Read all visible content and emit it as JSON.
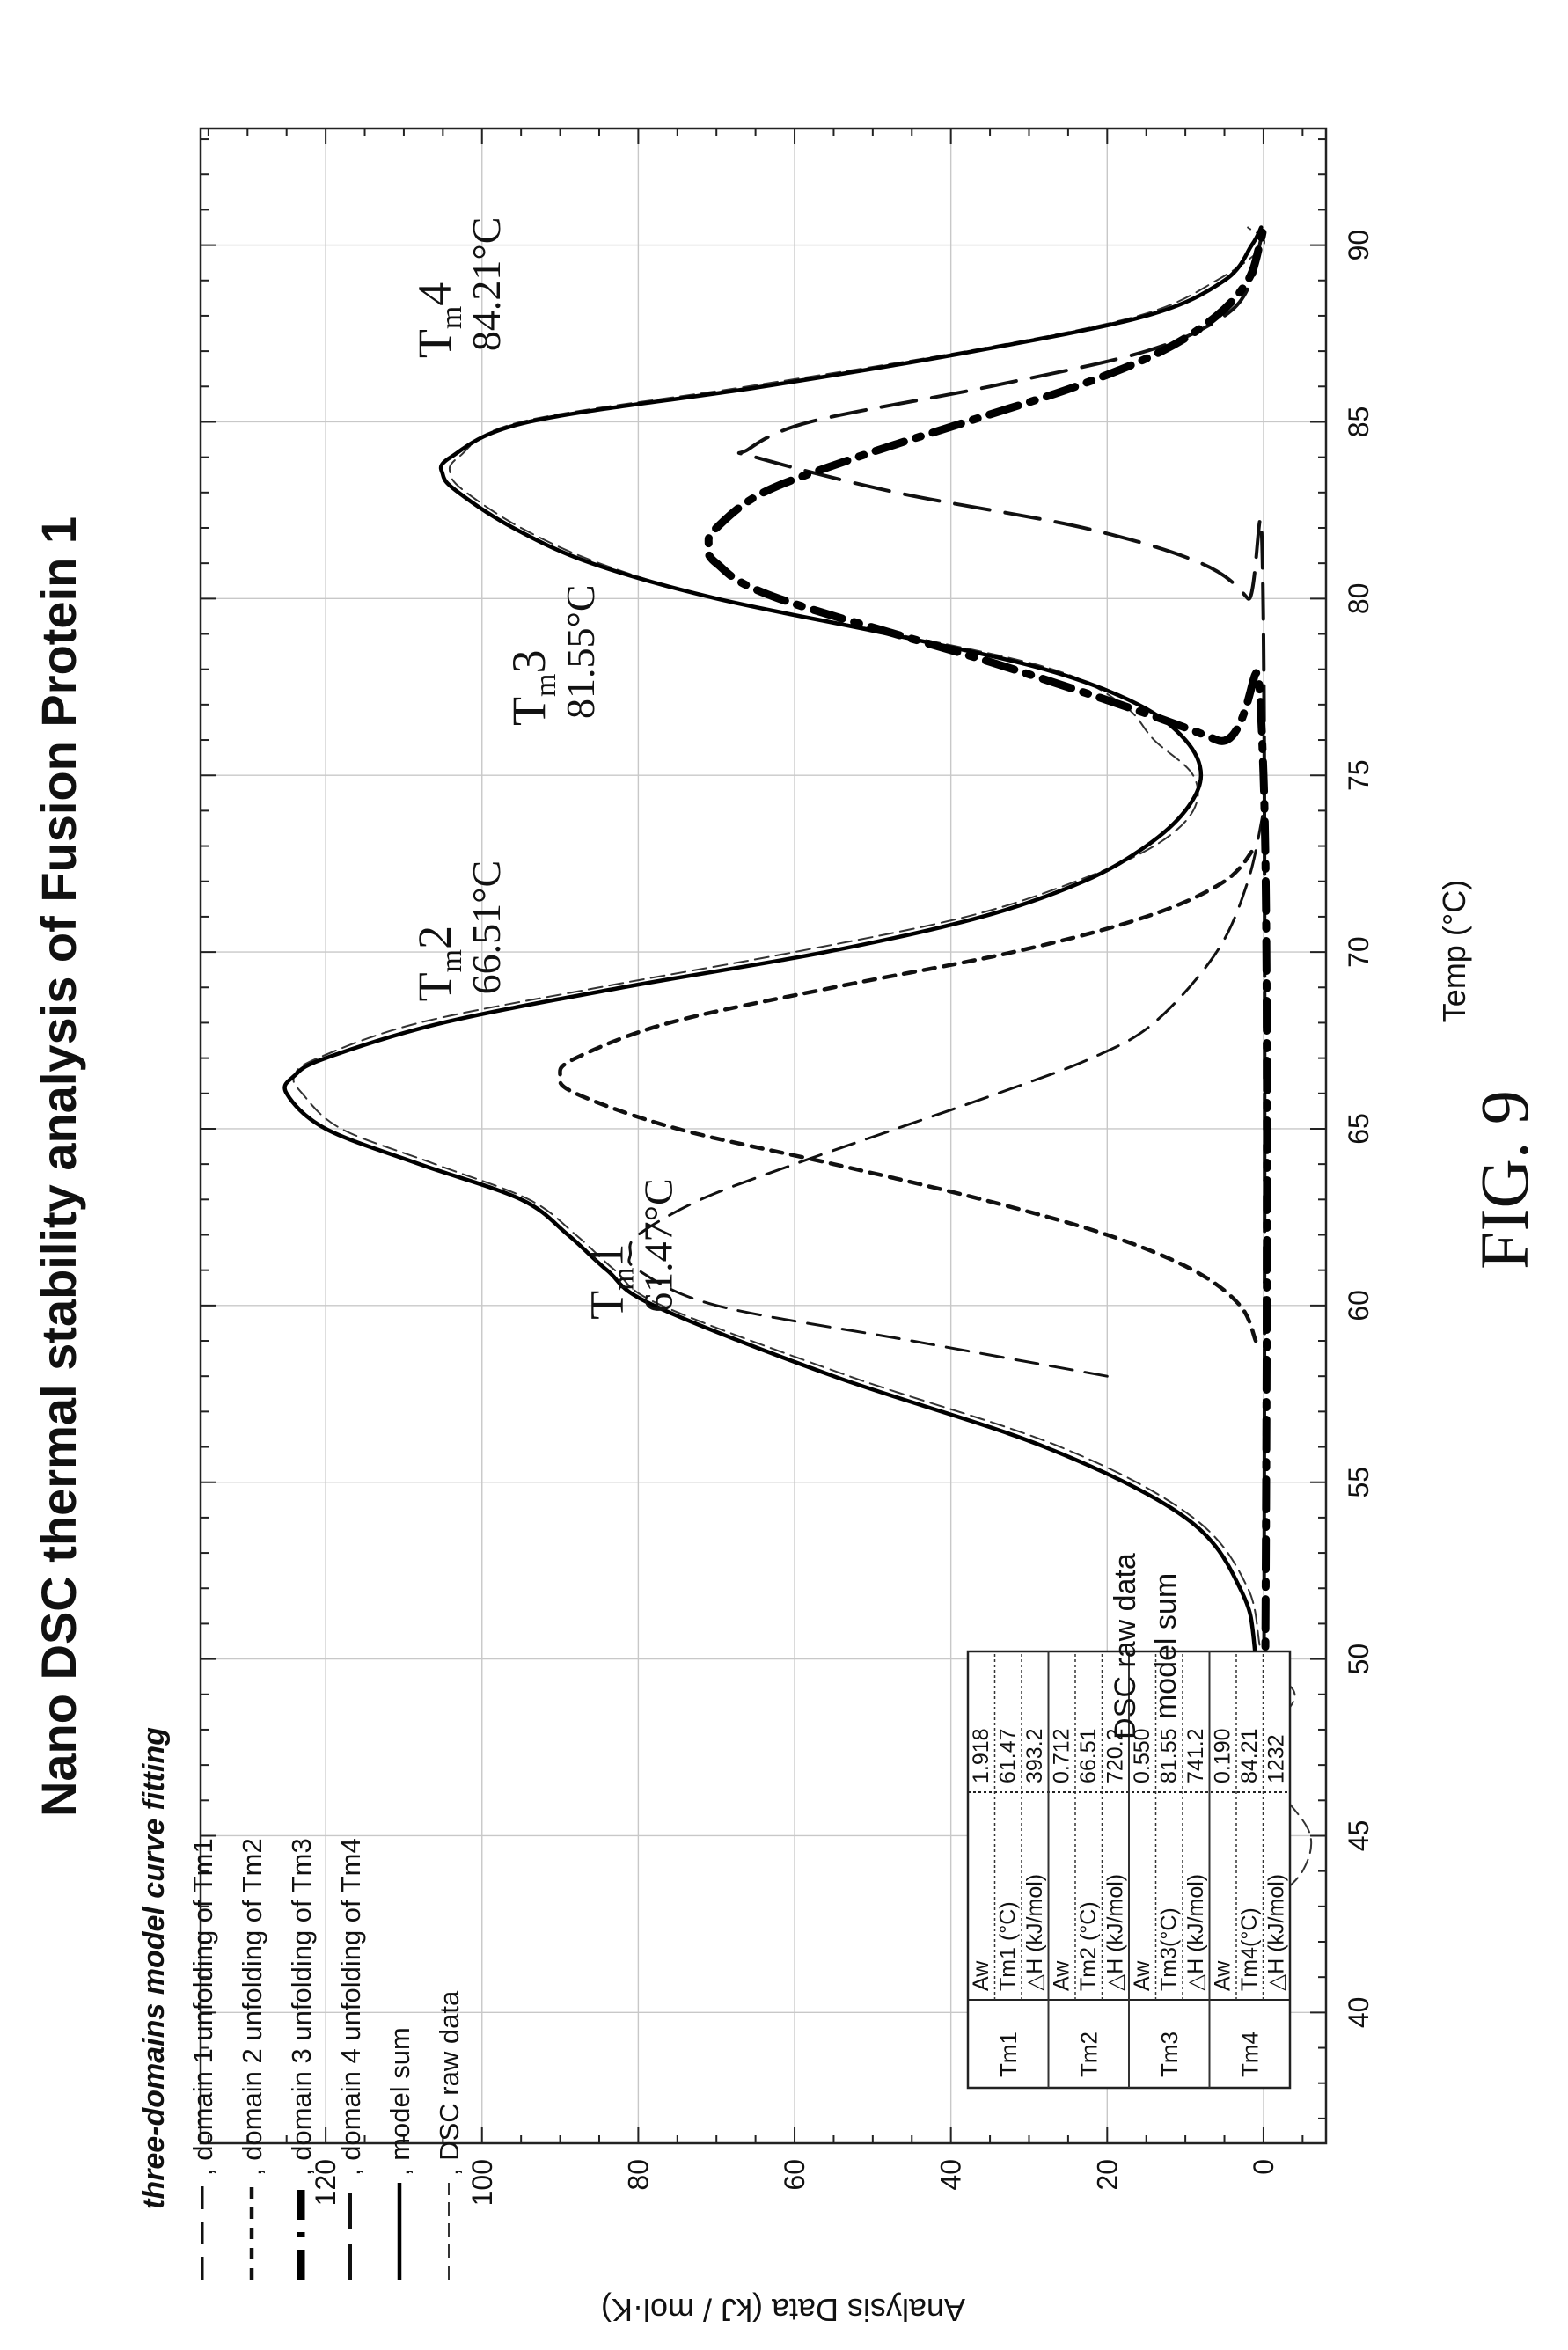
{
  "figure_label": "FIG. 9",
  "chart_data": {
    "type": "line",
    "title": "Nano DSC thermal stability analysis of Fusion Protein 1",
    "xlabel": "Temp (°C)",
    "ylabel": "Analysis Data (kJ / mol·K)",
    "xlim": [
      36.3,
      93.3
    ],
    "ylim": [
      -8,
      136
    ],
    "x_ticks": [
      40,
      45,
      50,
      55,
      60,
      65,
      70,
      75,
      80,
      85,
      90
    ],
    "y_ticks": [
      0,
      20,
      40,
      60,
      80,
      100,
      120
    ],
    "grid": true,
    "legend": {
      "placement": "top-left",
      "title": "three-domains model curve fitting",
      "entries": [
        {
          "label": ", domain 1 unfolding of Tm1",
          "series": "domain1"
        },
        {
          "label": ", domain 2 unfolding of Tm2",
          "series": "domain2"
        },
        {
          "label": ", domain 3 unfolding of Tm3",
          "series": "domain3"
        },
        {
          "label": ", domain 4 unfolding of Tm4",
          "series": "domain4"
        },
        {
          "label": ", model sum",
          "series": "model_sum"
        },
        {
          "label": ", DSC raw data",
          "series": "raw"
        }
      ]
    },
    "inline_labels": [
      "DSC raw data",
      "model sum"
    ],
    "annotations": [
      {
        "tm": "T",
        "sub": "m",
        "num": "1",
        "value": "61.47°C",
        "x": 59.6,
        "y": 82
      },
      {
        "tm": "T",
        "sub": "m",
        "num": "2",
        "value": "66.51°C",
        "x": 68.6,
        "y": 104
      },
      {
        "tm": "T",
        "sub": "m",
        "num": "3",
        "value": "81.55°C",
        "x": 76.4,
        "y": 92
      },
      {
        "tm": "T",
        "sub": "m",
        "num": "4",
        "value": "84.21°C",
        "x": 86.8,
        "y": 104
      }
    ],
    "params": {
      "headers": [
        "Tm1",
        "Tm2",
        "Tm3",
        "Tm4"
      ],
      "rows": [
        {
          "group": "Tm1",
          "label": "Aw",
          "value": "1.918"
        },
        {
          "group": "",
          "label": "Tm1 (°C)",
          "value": "61.47"
        },
        {
          "group": "",
          "label": "△H (kJ/mol)",
          "value": "393.2"
        },
        {
          "group": "Tm2",
          "label": "Aw",
          "value": "0.712"
        },
        {
          "group": "",
          "label": "Tm2 (°C)",
          "value": "66.51"
        },
        {
          "group": "",
          "label": "△H (kJ/mol)",
          "value": "720.2"
        },
        {
          "group": "Tm3",
          "label": "Aw",
          "value": "0.550"
        },
        {
          "group": "",
          "label": "Tm3(°C)",
          "value": "81.55"
        },
        {
          "group": "",
          "label": "△H (kJ/mol)",
          "value": "741.2"
        },
        {
          "group": "Tm4",
          "label": "Aw",
          "value": "0.190"
        },
        {
          "group": "",
          "label": "Tm4(°C)",
          "value": "84.21"
        },
        {
          "group": "",
          "label": "△H (kJ/mol)",
          "value": "1232"
        }
      ]
    },
    "series": [
      {
        "id": "domain1",
        "style": "long-dash",
        "x": [
          58,
          59,
          60,
          61,
          61.47,
          62,
          63,
          64,
          65,
          66,
          67,
          68,
          70,
          72,
          74
        ],
        "y": [
          20,
          45,
          70,
          80,
          81,
          80,
          72,
          60,
          47,
          34,
          22,
          14,
          6,
          2,
          0
        ]
      },
      {
        "id": "domain2",
        "style": "short-dash",
        "x": [
          59,
          60,
          61,
          62,
          63,
          64,
          65,
          66,
          66.51,
          67,
          68,
          69,
          70,
          71,
          72,
          73
        ],
        "y": [
          1,
          3,
          9,
          20,
          36,
          55,
          75,
          88,
          90,
          88,
          76,
          55,
          32,
          15,
          5,
          1
        ]
      },
      {
        "id": "domain3",
        "style": "heavy-dash",
        "x": [
          39,
          75,
          76,
          78,
          80,
          81,
          81.55,
          82,
          83,
          84,
          85,
          86,
          87,
          88,
          89,
          90,
          90.5
        ],
        "y": [
          0,
          0,
          6,
          32,
          62,
          70,
          71,
          70,
          64,
          52,
          38,
          24,
          13,
          6,
          2,
          0.5,
          0
        ]
      },
      {
        "id": "domain4",
        "style": "thin-long-dash",
        "x": [
          39,
          79,
          80,
          81,
          82,
          83,
          84,
          84.21,
          85,
          86,
          87,
          88,
          89,
          90,
          90.5
        ],
        "y": [
          0,
          0,
          2,
          8,
          23,
          47,
          65,
          66,
          58,
          35,
          15,
          5,
          1.5,
          0.5,
          0
        ]
      },
      {
        "id": "model_sum",
        "style": "solid",
        "x": [
          39,
          45,
          50,
          52,
          54,
          56,
          58,
          60,
          61,
          62,
          63,
          64,
          65,
          66,
          66.5,
          67,
          68,
          69,
          70,
          71,
          72,
          73,
          74,
          75,
          76,
          77,
          78,
          79,
          80,
          81,
          82,
          83,
          83.5,
          84,
          85,
          86,
          87,
          88,
          89,
          90,
          90.5
        ],
        "y": [
          0,
          0,
          1,
          3,
          10,
          28,
          55,
          78,
          84,
          89,
          95,
          108,
          120,
          125,
          124,
          120,
          105,
          82,
          56,
          36,
          23,
          15,
          10,
          8,
          10,
          16,
          28,
          48,
          70,
          86,
          96,
          103,
          105,
          104,
          94,
          64,
          37,
          15,
          5,
          1.5,
          0.3
        ]
      },
      {
        "id": "raw",
        "style": "thin-dash",
        "x": [
          39,
          40,
          42,
          43,
          44,
          45,
          46,
          47,
          48,
          49,
          50,
          52,
          54,
          56,
          58,
          60,
          61,
          62,
          63,
          64,
          65,
          66,
          66.5,
          67,
          68,
          69,
          70,
          71,
          72,
          73,
          74,
          75,
          76,
          77,
          78,
          79,
          80,
          81,
          82,
          83,
          83.5,
          84,
          85,
          86,
          87,
          88,
          89,
          90,
          90.5
        ],
        "y": [
          -2,
          -1,
          0,
          -1,
          -5,
          -6,
          -3,
          1,
          -1,
          -4,
          0,
          2,
          9,
          26,
          53,
          77,
          83,
          88,
          94,
          106,
          118,
          123,
          124,
          121,
          108,
          85,
          60,
          38,
          24,
          14,
          9,
          9,
          14,
          18,
          27,
          47,
          70,
          85,
          95,
          102,
          104,
          103,
          95,
          66,
          38,
          16,
          6,
          0,
          2
        ]
      }
    ]
  }
}
